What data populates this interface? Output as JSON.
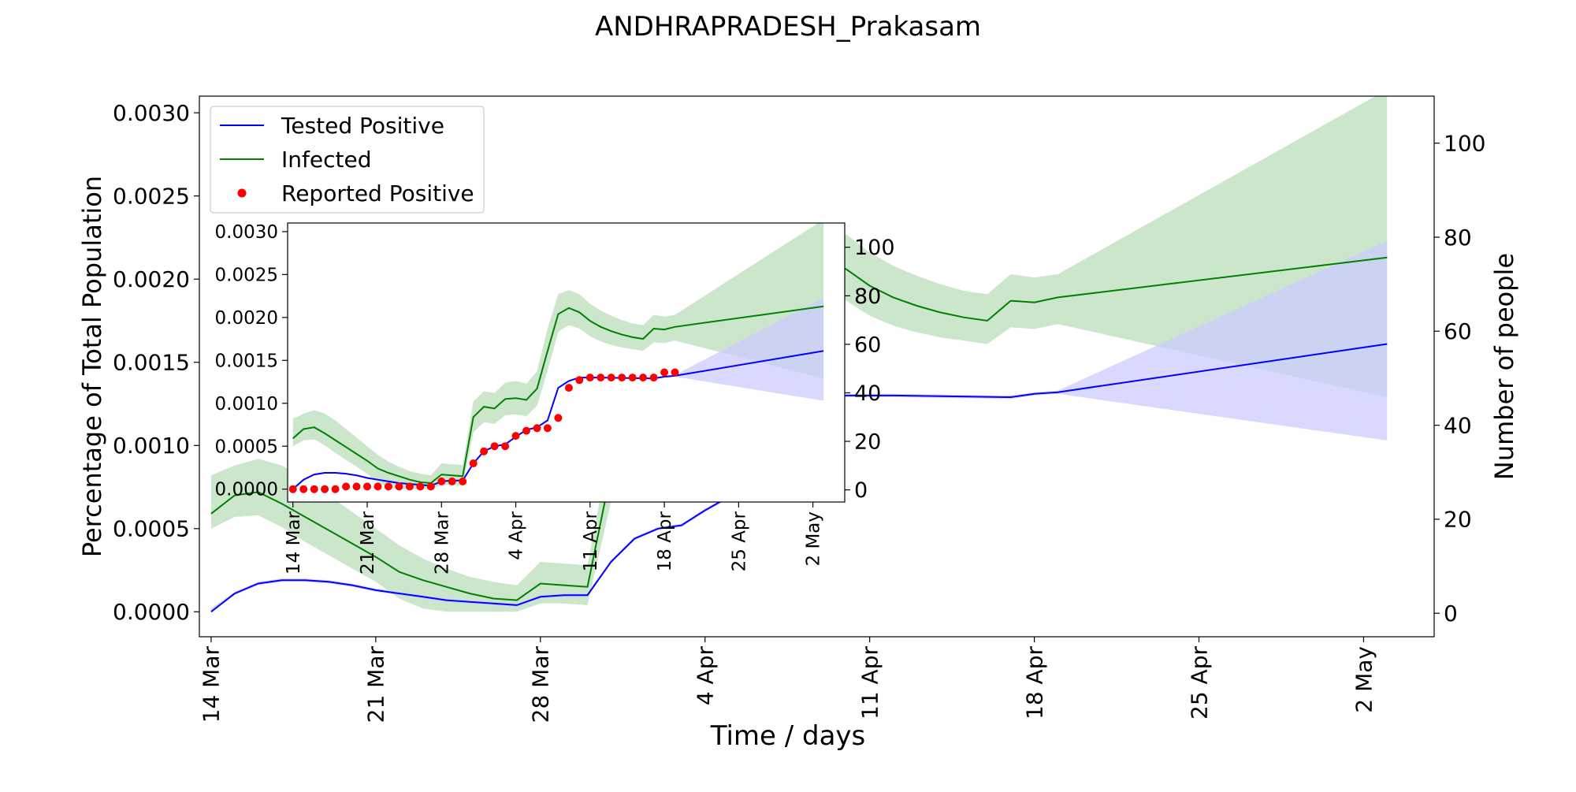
{
  "chart_data": {
    "type": "line",
    "title": "ANDHRAPRADESH_Prakasam",
    "xlabel": "Time / days",
    "ylabel_left": "Percentage of Total Population",
    "ylabel_right": "Number of people",
    "x_ticks": [
      "14 Mar",
      "21 Mar",
      "28 Mar",
      "4 Apr",
      "11 Apr",
      "18 Apr",
      "25 Apr",
      "2 May"
    ],
    "x_range_days": [
      -0.5,
      52
    ],
    "x_tick_days": [
      0,
      7,
      14,
      21,
      28,
      35,
      42,
      49
    ],
    "ylim_left": [
      -0.00015,
      0.0031
    ],
    "ylim_right": [
      -5,
      110
    ],
    "yticks_left": [
      "0.0000",
      "0.0005",
      "0.0010",
      "0.0015",
      "0.0020",
      "0.0025",
      "0.0030"
    ],
    "yticks_left_values": [
      0,
      0.0005,
      0.001,
      0.0015,
      0.002,
      0.0025,
      0.003
    ],
    "yticks_right": [
      "0",
      "20",
      "40",
      "60",
      "80",
      "100"
    ],
    "yticks_right_values": [
      0,
      20,
      40,
      60,
      80,
      100
    ],
    "legend": {
      "placement": "top-left",
      "entries": [
        {
          "label": "Tested Positive",
          "color": "#0000ff",
          "marker": "line"
        },
        {
          "label": "Infected",
          "color": "#008000",
          "marker": "line"
        },
        {
          "label": "Reported Positive",
          "color": "#ff0000",
          "marker": "dot"
        }
      ]
    },
    "colors": {
      "tested": "#0000ff",
      "tested_band": "#ccccff",
      "infected": "#008000",
      "infected_band": "#cce6cc",
      "overlap_band": "#9db8cc",
      "reported": "#ff0000"
    },
    "series": [
      {
        "name": "Tested Positive",
        "x": [
          0,
          1,
          2,
          3,
          4,
          5,
          6,
          7,
          8,
          9,
          10,
          11,
          12,
          13,
          14,
          15,
          16,
          17,
          18,
          19,
          20,
          21,
          22,
          23,
          24,
          25,
          26,
          27,
          28,
          29,
          34,
          35,
          36,
          50
        ],
        "y": [
          0,
          0.00011,
          0.00017,
          0.00019,
          0.00019,
          0.00018,
          0.00016,
          0.00013,
          0.00011,
          9e-05,
          7e-05,
          6e-05,
          5e-05,
          4e-05,
          9e-05,
          0.0001,
          0.0001,
          0.0003,
          0.00044,
          0.0005,
          0.00052,
          0.00061,
          0.00069,
          0.00072,
          0.0008,
          0.00118,
          0.00126,
          0.0013,
          0.0013,
          0.0013,
          0.00129,
          0.00131,
          0.00132,
          0.00161
        ]
      },
      {
        "name": "Tested Positive band",
        "x": [
          0,
          1,
          2,
          3,
          4,
          5,
          6,
          7,
          8,
          9,
          10,
          11,
          12,
          13,
          14,
          15,
          16,
          17,
          18,
          19,
          20,
          21,
          22,
          23,
          24,
          25,
          26,
          27,
          28,
          29,
          34,
          35,
          36,
          50
        ],
        "upper": [
          2e-05,
          0.00012,
          0.00018,
          0.0002,
          0.0002,
          0.00019,
          0.00017,
          0.00014,
          0.00012,
          0.0001,
          8e-05,
          7e-05,
          6e-05,
          5e-05,
          0.0001,
          0.00011,
          0.00011,
          0.00031,
          0.00045,
          0.00051,
          0.00053,
          0.00062,
          0.0007,
          0.00073,
          0.00081,
          0.00119,
          0.00127,
          0.00131,
          0.00131,
          0.00131,
          0.0013,
          0.00132,
          0.00133,
          0.00223
        ],
        "lower": [
          0,
          0.0001,
          0.00016,
          0.00018,
          0.00018,
          0.00017,
          0.00015,
          0.00012,
          0.0001,
          8e-05,
          6e-05,
          5e-05,
          4e-05,
          3e-05,
          8e-05,
          9e-05,
          9e-05,
          0.00029,
          0.00043,
          0.00049,
          0.00051,
          0.0006,
          0.00068,
          0.00071,
          0.00079,
          0.00117,
          0.00125,
          0.00129,
          0.00129,
          0.00129,
          0.00128,
          0.0013,
          0.00131,
          0.00103
        ]
      },
      {
        "name": "Infected",
        "x": [
          0,
          1,
          2,
          3,
          4,
          5,
          6,
          7,
          8,
          9,
          10,
          11,
          12,
          13,
          14,
          15,
          16,
          17,
          18,
          19,
          20,
          21,
          22,
          23,
          24,
          25,
          26,
          27,
          28,
          29,
          30,
          31,
          32,
          33,
          34,
          35,
          36,
          50
        ],
        "y": [
          0.00059,
          0.0007,
          0.00072,
          0.00065,
          0.00057,
          0.00049,
          0.00041,
          0.00033,
          0.00024,
          0.00019,
          0.00015,
          0.00011,
          8e-05,
          7e-05,
          0.00017,
          0.00016,
          0.00015,
          0.00084,
          0.00096,
          0.00094,
          0.00105,
          0.00106,
          0.00104,
          0.00117,
          0.00161,
          0.00204,
          0.00211,
          0.00206,
          0.00196,
          0.00189,
          0.00184,
          0.0018,
          0.00177,
          0.00175,
          0.00187,
          0.00186,
          0.00189,
          0.00213
        ]
      },
      {
        "name": "Infected band",
        "x": [
          0,
          1,
          2,
          3,
          4,
          5,
          6,
          7,
          8,
          9,
          10,
          11,
          12,
          13,
          14,
          15,
          16,
          17,
          18,
          19,
          20,
          21,
          22,
          23,
          24,
          25,
          26,
          27,
          28,
          29,
          30,
          31,
          32,
          33,
          34,
          35,
          36,
          50
        ],
        "upper": [
          0.00082,
          0.00088,
          0.00092,
          0.00088,
          0.0008,
          0.0007,
          0.0006,
          0.0005,
          0.0004,
          0.00032,
          0.00026,
          0.00021,
          0.00018,
          0.00016,
          0.0003,
          0.00029,
          0.00028,
          0.00102,
          0.00114,
          0.00112,
          0.00124,
          0.00126,
          0.00123,
          0.00137,
          0.00187,
          0.00227,
          0.00232,
          0.00227,
          0.00216,
          0.00208,
          0.00202,
          0.00197,
          0.00193,
          0.00191,
          0.00203,
          0.00201,
          0.00203,
          0.00314
        ],
        "lower": [
          0.0005,
          0.00057,
          0.00058,
          0.00051,
          0.00042,
          0.00034,
          0.00026,
          0.00018,
          8e-05,
          2e-05,
          0,
          0,
          0,
          0,
          5e-05,
          5e-05,
          4e-05,
          0.00066,
          0.00078,
          0.00076,
          0.00086,
          0.00087,
          0.00085,
          0.00097,
          0.00138,
          0.00183,
          0.00191,
          0.00187,
          0.00178,
          0.00172,
          0.00168,
          0.00165,
          0.00163,
          0.00161,
          0.00171,
          0.0017,
          0.00173,
          0.00129
        ]
      },
      {
        "name": "Reported Positive",
        "x": [
          0,
          1,
          2,
          3,
          4,
          5,
          6,
          7,
          8,
          9,
          10,
          11,
          12,
          13,
          14,
          15,
          16,
          17,
          18,
          19,
          20,
          21,
          22,
          23,
          24,
          25,
          26,
          27,
          28,
          29,
          30,
          31,
          32,
          33,
          34,
          35,
          36
        ],
        "y": [
          0,
          0,
          0,
          0,
          0,
          3e-05,
          3e-05,
          3e-05,
          3e-05,
          3e-05,
          3e-05,
          3e-05,
          3e-05,
          3e-05,
          9e-05,
          9e-05,
          9e-05,
          0.0003,
          0.00044,
          0.0005,
          0.0005,
          0.00062,
          0.00068,
          0.00071,
          0.00071,
          0.00083,
          0.00118,
          0.00127,
          0.0013,
          0.0013,
          0.0013,
          0.0013,
          0.0013,
          0.0013,
          0.0013,
          0.00136,
          0.00136
        ]
      }
    ],
    "inset": {
      "description": "zoomed copy",
      "x_ticks": [
        "14 Mar",
        "21 Mar",
        "28 Mar",
        "4 Apr",
        "11 Apr",
        "18 Apr",
        "25 Apr",
        "2 May"
      ],
      "yticks_left": [
        "0.0000",
        "0.0005",
        "0.0010",
        "0.0015",
        "0.0020",
        "0.0025",
        "0.0030"
      ],
      "yticks_right": [
        "0",
        "20",
        "40",
        "60",
        "80",
        "100"
      ]
    }
  }
}
